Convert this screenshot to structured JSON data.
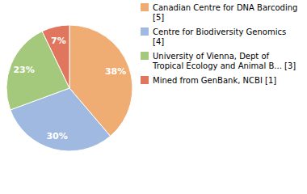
{
  "chart_data": {
    "type": "pie",
    "categories": [
      "Canadian Centre for DNA Barcoding [5]",
      "Centre for Biodiversity Genomics [4]",
      "University of Vienna, Dept of Tropical Ecology and Animal B... [3]",
      "Mined from GenBank, NCBI [1]"
    ],
    "values": [
      38,
      30,
      23,
      7
    ],
    "value_labels": [
      "38%",
      "30%",
      "23%",
      "7%"
    ],
    "colors": [
      "#f0ad73",
      "#9fb9e0",
      "#a4c97c",
      "#e0765e"
    ],
    "data_labels": true,
    "legend": "right"
  }
}
